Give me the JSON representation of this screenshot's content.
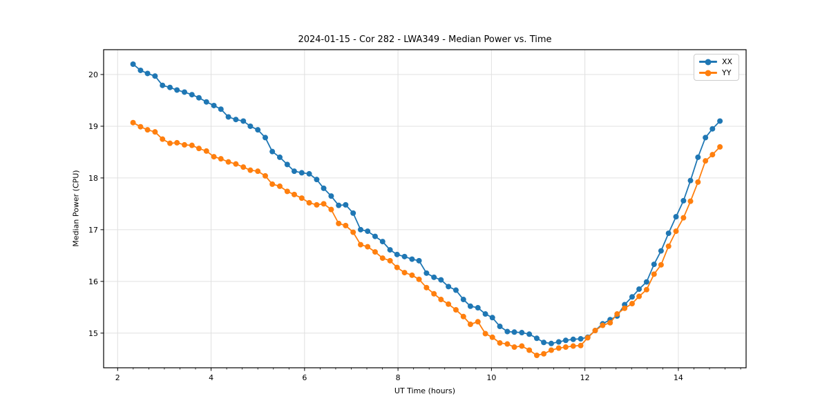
{
  "figure": {
    "background": "#ffffff"
  },
  "colors": {
    "grid": "#e0e0e0",
    "spine": "#000000",
    "tick_label": "#000000",
    "series_xx": "#1f77b4",
    "series_yy": "#ff7f0e"
  },
  "chart_data": {
    "type": "line",
    "title": "2024-01-15 - Cor 282 - LWA349 - Median Power vs. Time",
    "xlabel": "UT Time (hours)",
    "ylabel": "Median Power (CPU)",
    "xlim": [
      1.7,
      15.45
    ],
    "ylim": [
      14.33,
      20.48
    ],
    "x_ticks": [
      2,
      4,
      6,
      8,
      10,
      12,
      14
    ],
    "y_ticks": [
      15,
      16,
      17,
      18,
      19,
      20
    ],
    "x_minor_interval": 0.3333,
    "grid": true,
    "legend_position": "upper right",
    "marker": "circle",
    "x": [
      2.33,
      2.49,
      2.64,
      2.8,
      2.96,
      3.12,
      3.27,
      3.43,
      3.59,
      3.74,
      3.9,
      4.06,
      4.21,
      4.37,
      4.53,
      4.69,
      4.84,
      5.0,
      5.16,
      5.31,
      5.47,
      5.63,
      5.78,
      5.94,
      6.1,
      6.26,
      6.41,
      6.57,
      6.73,
      6.88,
      7.04,
      7.2,
      7.35,
      7.51,
      7.67,
      7.83,
      7.98,
      8.14,
      8.3,
      8.45,
      8.61,
      8.77,
      8.92,
      9.08,
      9.24,
      9.4,
      9.55,
      9.71,
      9.87,
      10.02,
      10.18,
      10.34,
      10.49,
      10.65,
      10.81,
      10.97,
      11.12,
      11.28,
      11.44,
      11.59,
      11.75,
      11.91,
      12.06,
      12.22,
      12.38,
      12.54,
      12.69,
      12.85,
      13.01,
      13.16,
      13.32,
      13.48,
      13.63,
      13.79,
      13.95,
      14.11,
      14.26,
      14.42,
      14.58,
      14.73,
      14.89
    ],
    "series": [
      {
        "name": "XX",
        "color": "#1f77b4",
        "values": [
          20.2,
          20.08,
          20.02,
          19.97,
          19.79,
          19.75,
          19.7,
          19.66,
          19.61,
          19.55,
          19.47,
          19.4,
          19.33,
          19.18,
          19.13,
          19.1,
          19.0,
          18.93,
          18.78,
          18.51,
          18.4,
          18.26,
          18.13,
          18.1,
          18.08,
          17.97,
          17.8,
          17.65,
          17.47,
          17.48,
          17.32,
          17.0,
          16.97,
          16.87,
          16.77,
          16.61,
          16.52,
          16.48,
          16.43,
          16.4,
          16.16,
          16.08,
          16.03,
          15.9,
          15.83,
          15.65,
          15.52,
          15.49,
          15.37,
          15.3,
          15.13,
          15.03,
          15.02,
          15.01,
          14.98,
          14.9,
          14.82,
          14.8,
          14.83,
          14.86,
          14.88,
          14.89,
          14.92,
          15.05,
          15.18,
          15.26,
          15.33,
          15.55,
          15.7,
          15.85,
          15.99,
          16.33,
          16.59,
          16.93,
          17.25,
          17.56,
          17.95,
          18.4,
          18.78,
          18.95,
          19.1
        ]
      },
      {
        "name": "YY",
        "color": "#ff7f0e",
        "values": [
          19.07,
          18.99,
          18.93,
          18.89,
          18.75,
          18.67,
          18.68,
          18.64,
          18.63,
          18.57,
          18.52,
          18.41,
          18.37,
          18.31,
          18.27,
          18.21,
          18.15,
          18.13,
          18.04,
          17.88,
          17.84,
          17.74,
          17.68,
          17.61,
          17.52,
          17.48,
          17.5,
          17.39,
          17.12,
          17.08,
          16.95,
          16.71,
          16.67,
          16.57,
          16.45,
          16.4,
          16.27,
          16.17,
          16.12,
          16.04,
          15.88,
          15.76,
          15.65,
          15.56,
          15.45,
          15.32,
          15.17,
          15.22,
          14.99,
          14.92,
          14.81,
          14.79,
          14.73,
          14.75,
          14.67,
          14.57,
          14.6,
          14.67,
          14.71,
          14.73,
          14.75,
          14.76,
          14.91,
          15.05,
          15.15,
          15.2,
          15.37,
          15.48,
          15.57,
          15.71,
          15.84,
          16.14,
          16.32,
          16.68,
          16.97,
          17.23,
          17.55,
          17.92,
          18.33,
          18.45,
          18.6
        ]
      }
    ]
  }
}
